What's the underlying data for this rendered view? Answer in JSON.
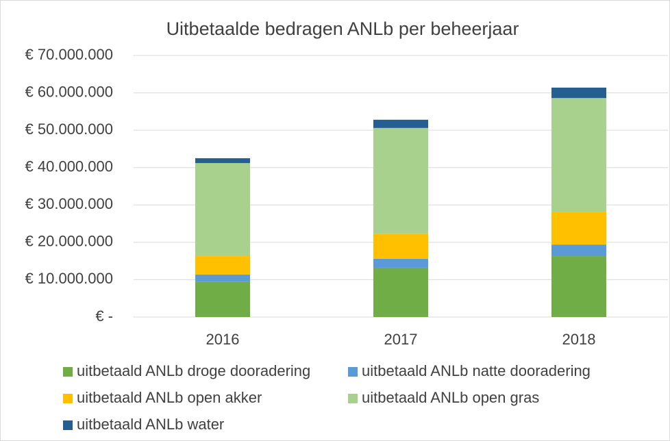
{
  "chart_data": {
    "type": "stacked_bar",
    "title": "Uitbetaalde bedragen ANLb per beheerjaar",
    "categories": [
      "2016",
      "2017",
      "2018"
    ],
    "series": [
      {
        "name": "uitbetaald ANLb droge dooradering",
        "color": "#70ad47",
        "values": [
          9500000,
          13200000,
          16300000
        ]
      },
      {
        "name": "uitbetaald ANLb natte dooradering",
        "color": "#5b9bd5",
        "values": [
          1900000,
          2400000,
          3100000
        ]
      },
      {
        "name": "uitbetaald ANLb open akker",
        "color": "#ffc000",
        "values": [
          4900000,
          6600000,
          8800000
        ]
      },
      {
        "name": "uitbetaald ANLb open gras",
        "color": "#a9d18e",
        "values": [
          24900000,
          28400000,
          30400000
        ]
      },
      {
        "name": "uitbetaald ANLb water",
        "color": "#255e91",
        "values": [
          1300000,
          2200000,
          2800000
        ]
      }
    ],
    "ylim": [
      0,
      70000000
    ],
    "yticks": [
      {
        "value": 0,
        "label": "€ -"
      },
      {
        "value": 10000000,
        "label": "€ 10.000.000"
      },
      {
        "value": 20000000,
        "label": "€ 20.000.000"
      },
      {
        "value": 30000000,
        "label": "€ 30.000.000"
      },
      {
        "value": 40000000,
        "label": "€ 40.000.000"
      },
      {
        "value": 50000000,
        "label": "€ 50.000.000"
      },
      {
        "value": 60000000,
        "label": "€ 60.000.000"
      },
      {
        "value": 70000000,
        "label": "€ 70.000.000"
      }
    ],
    "grid": true,
    "legend": "bottom"
  }
}
